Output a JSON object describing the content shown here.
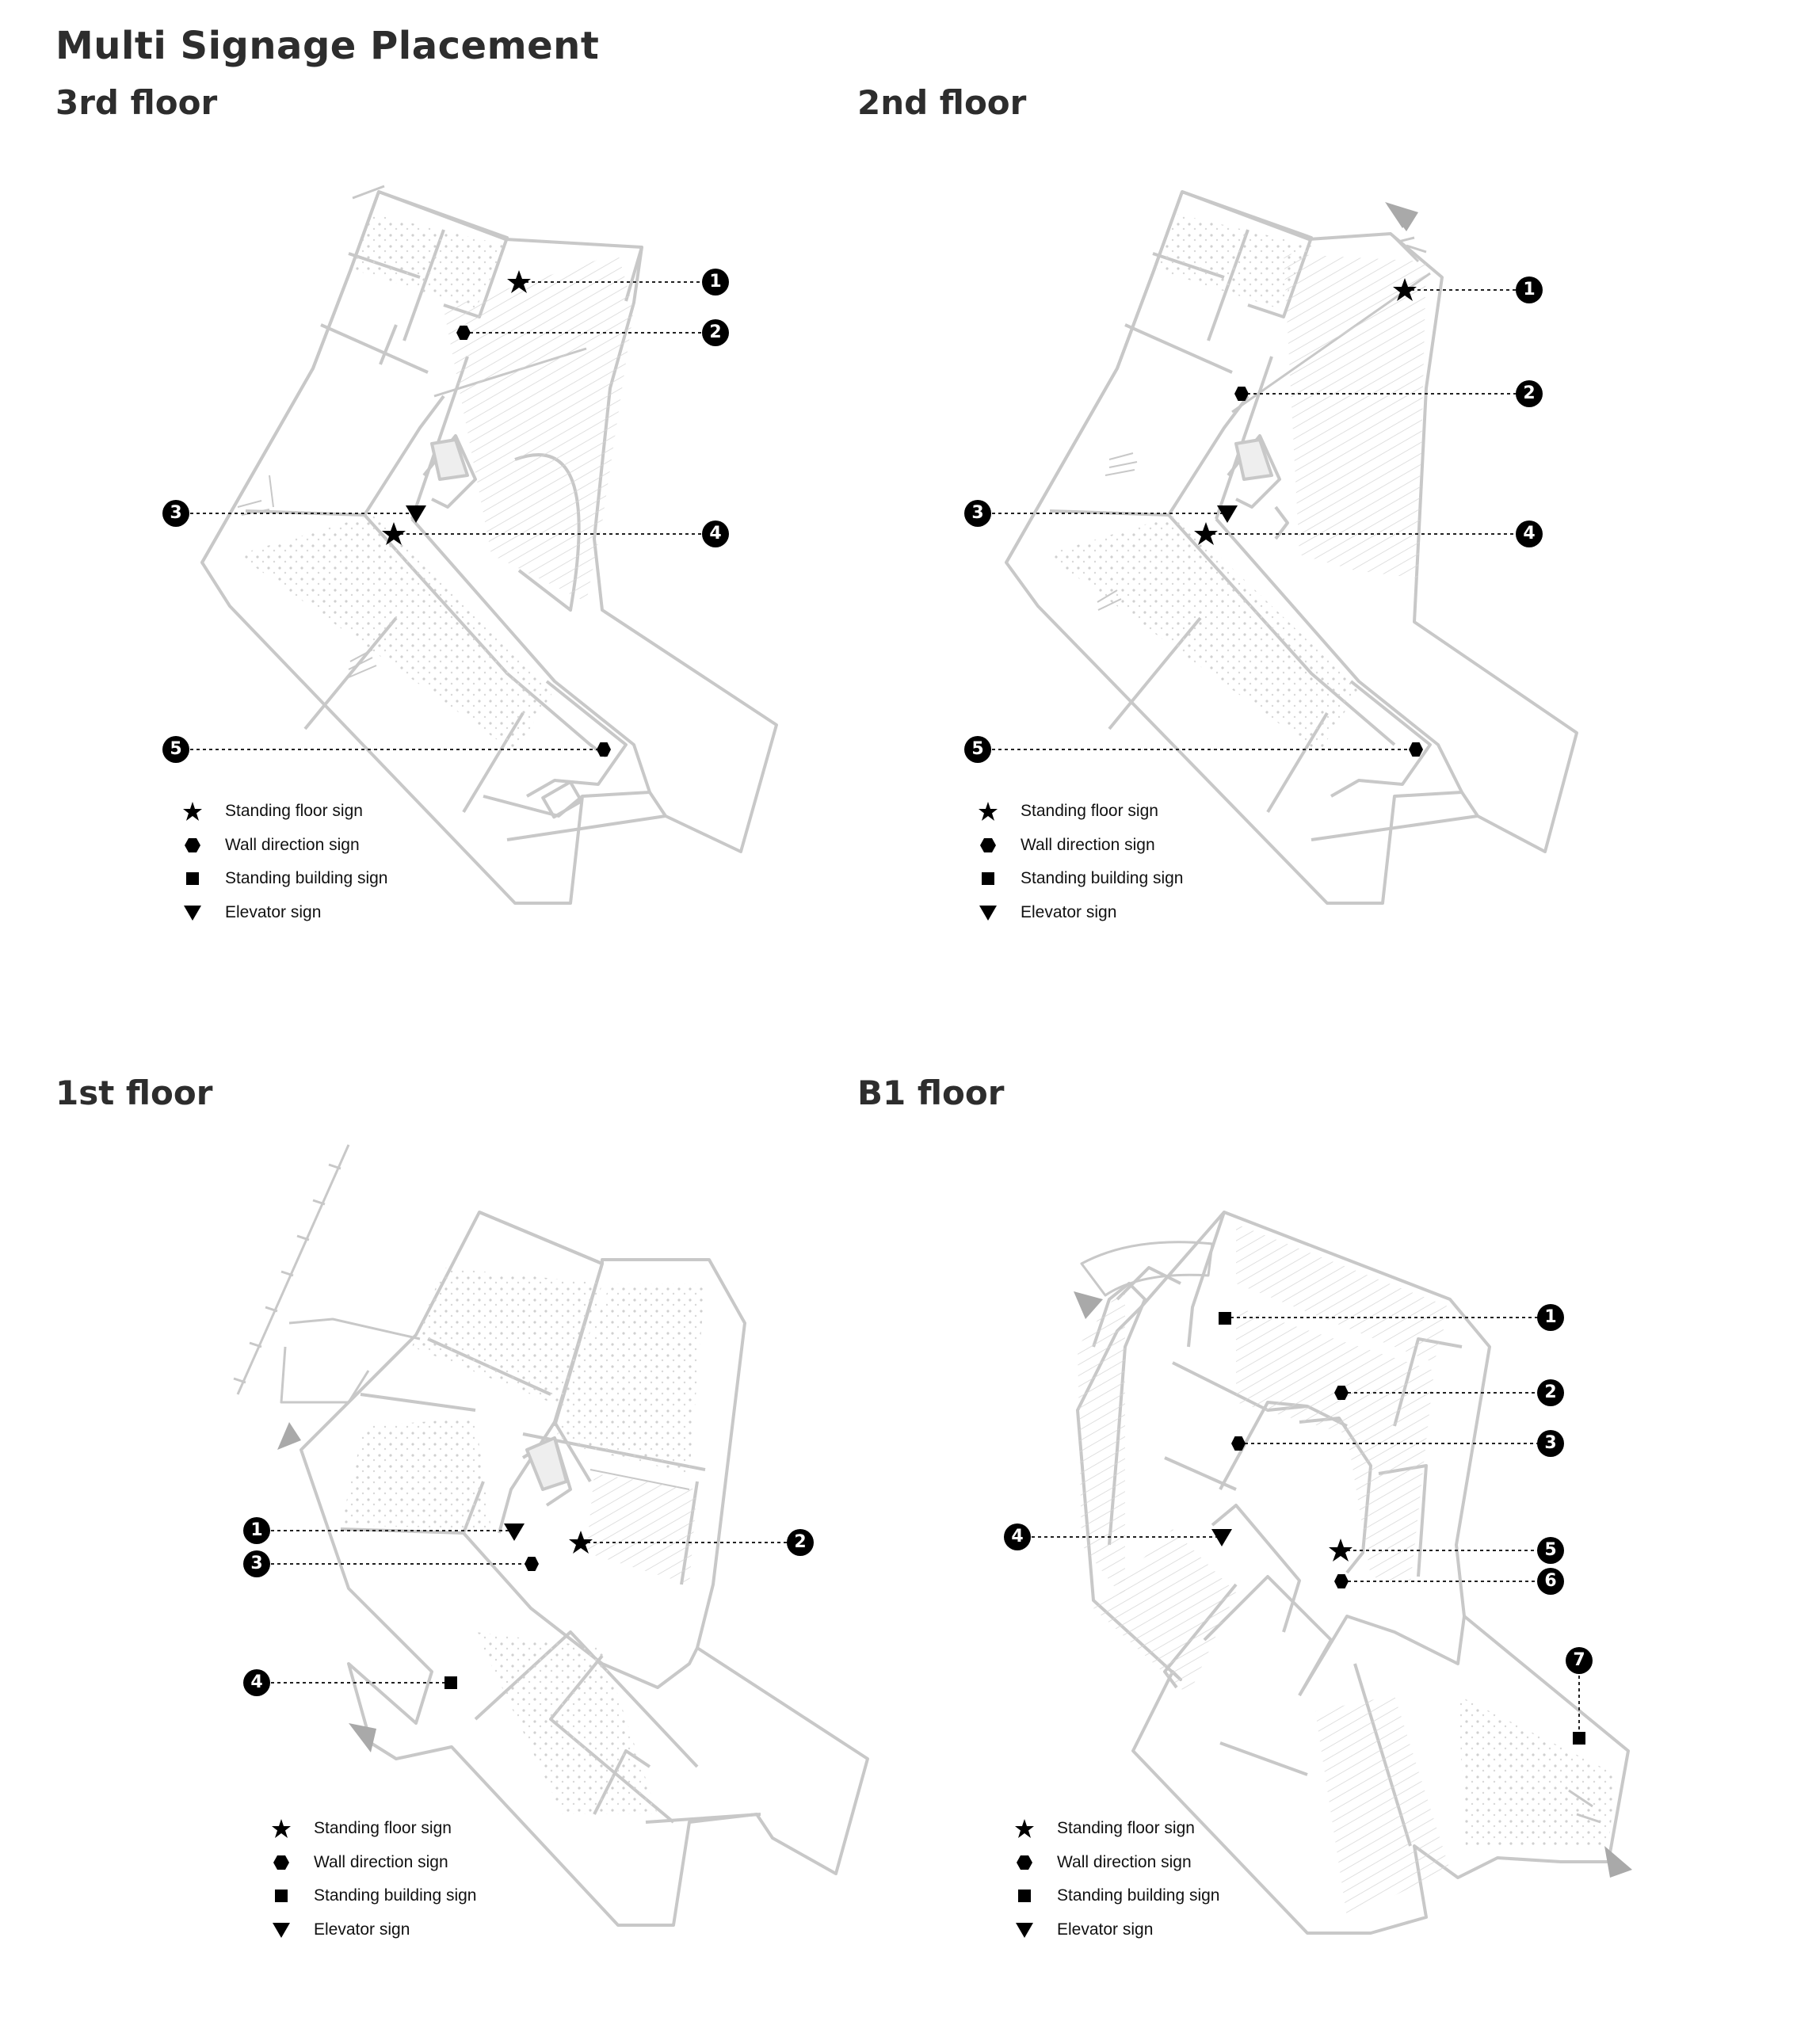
{
  "title": "Multi Signage Placement",
  "floors": [
    {
      "id": "f3",
      "title": "3rd floor"
    },
    {
      "id": "f2",
      "title": "2nd floor"
    },
    {
      "id": "f1",
      "title": "1st floor"
    },
    {
      "id": "b1",
      "title": "B1 floor"
    }
  ],
  "legend": {
    "standing_floor": "Standing  floor sign",
    "wall_direction": "Wall direction sign",
    "standing_building": "Standing building sign",
    "elevator": "Elevator sign"
  },
  "callouts": {
    "f3": [
      {
        "num": "1",
        "marker": "star"
      },
      {
        "num": "2",
        "marker": "hexagon"
      },
      {
        "num": "3",
        "marker": "triangle"
      },
      {
        "num": "4",
        "marker": "star"
      },
      {
        "num": "5",
        "marker": "hexagon"
      }
    ],
    "f2": [
      {
        "num": "1",
        "marker": "star"
      },
      {
        "num": "2",
        "marker": "hexagon"
      },
      {
        "num": "3",
        "marker": "triangle"
      },
      {
        "num": "4",
        "marker": "star"
      },
      {
        "num": "5",
        "marker": "hexagon"
      }
    ],
    "f1": [
      {
        "num": "1",
        "marker": "triangle"
      },
      {
        "num": "2",
        "marker": "star"
      },
      {
        "num": "3",
        "marker": "hexagon"
      },
      {
        "num": "4",
        "marker": "square"
      }
    ],
    "b1": [
      {
        "num": "1",
        "marker": "square"
      },
      {
        "num": "2",
        "marker": "hexagon"
      },
      {
        "num": "3",
        "marker": "hexagon"
      },
      {
        "num": "4",
        "marker": "triangle"
      },
      {
        "num": "5",
        "marker": "star"
      },
      {
        "num": "6",
        "marker": "hexagon"
      },
      {
        "num": "7",
        "marker": "square"
      }
    ]
  },
  "colors": {
    "plan_line": "#c8c8c8",
    "marker": "#000000",
    "arrow": "#a9a9a9"
  }
}
